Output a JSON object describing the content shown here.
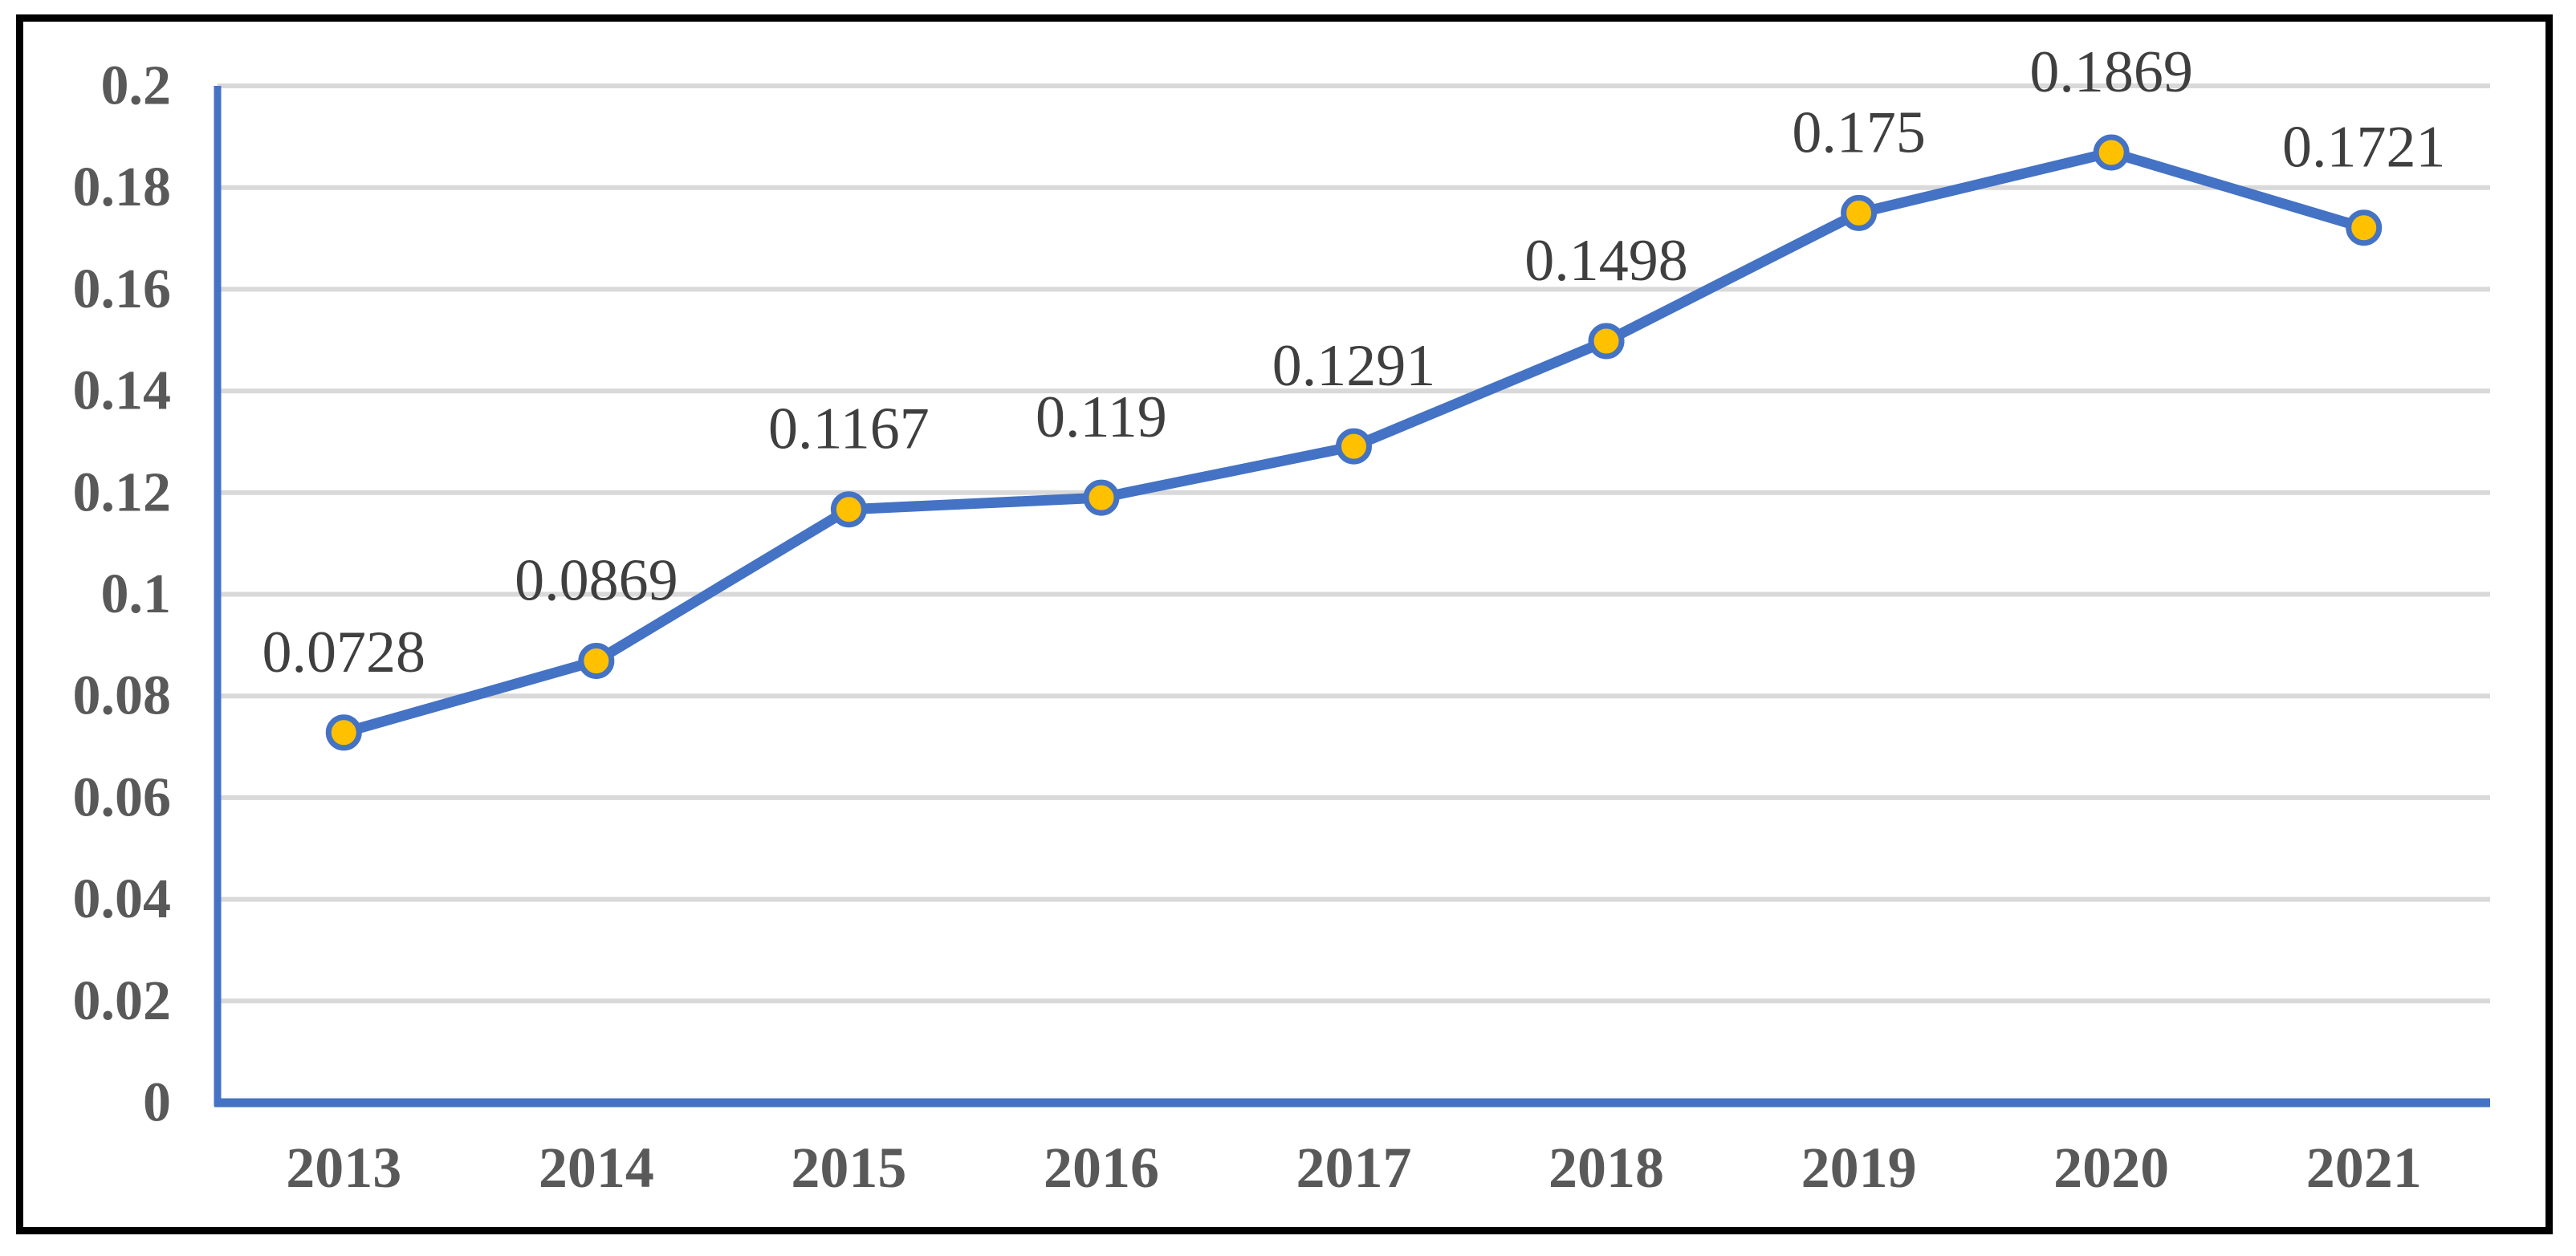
{
  "chart_data": {
    "type": "line",
    "title": "",
    "xlabel": "",
    "ylabel": "",
    "categories": [
      "2013",
      "2014",
      "2015",
      "2016",
      "2017",
      "2018",
      "2019",
      "2020",
      "2021"
    ],
    "series": [
      {
        "name": "",
        "values": [
          0.0728,
          0.0869,
          0.1167,
          0.119,
          0.1291,
          0.1498,
          0.175,
          0.1869,
          0.1721
        ],
        "point_labels": [
          "0.0728",
          "0.0869",
          "0.1167",
          "0.119",
          "0.1291",
          "0.1498",
          "0.175",
          "0.1869",
          "0.1721"
        ]
      }
    ],
    "ylim": [
      0,
      0.2
    ],
    "y_tick_interval": 0.02,
    "y_tick_labels": [
      "0",
      "0.02",
      "0.04",
      "0.06",
      "0.08",
      "0.1",
      "0.12",
      "0.14",
      "0.16",
      "0.18",
      "0.2"
    ],
    "grid": "horizontal",
    "legend_position": "none",
    "marker_shape": "circle",
    "colors": {
      "line": "#4472C4",
      "marker_fill": "#FFC000",
      "marker_border": "#4472C4",
      "axis_line": "#4472C4",
      "gridline": "#D9D9D9",
      "tick_label": "#595959",
      "data_label": "#3F3F3F",
      "frame_border": "#000000",
      "background": "#FFFFFF"
    }
  }
}
